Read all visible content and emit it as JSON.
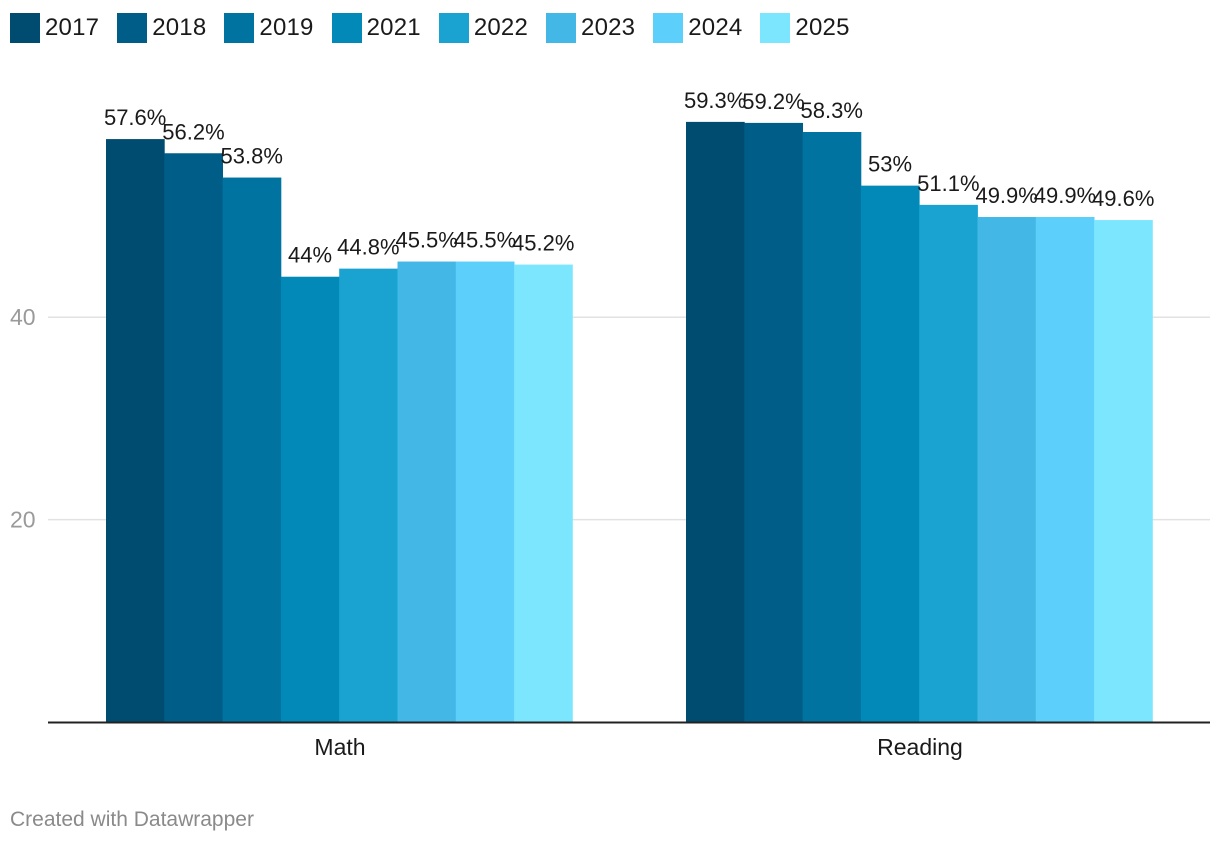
{
  "chart_data": {
    "type": "bar",
    "categories": [
      "Math",
      "Reading"
    ],
    "series": [
      {
        "name": "2017",
        "color": "#004c70",
        "values": [
          57.6,
          59.3
        ],
        "labels": [
          "57.6%",
          "59.3%"
        ]
      },
      {
        "name": "2018",
        "color": "#005d87",
        "values": [
          56.2,
          59.2
        ],
        "labels": [
          "56.2%",
          "59.2%"
        ]
      },
      {
        "name": "2019",
        "color": "#0073a0",
        "values": [
          53.8,
          58.3
        ],
        "labels": [
          "53.8%",
          "58.3%"
        ]
      },
      {
        "name": "2021",
        "color": "#0289b7",
        "values": [
          44.0,
          53.0
        ],
        "labels": [
          "44%",
          "53%"
        ]
      },
      {
        "name": "2022",
        "color": "#1aa3d1",
        "values": [
          44.8,
          51.1
        ],
        "labels": [
          "44.8%",
          "51.1%"
        ]
      },
      {
        "name": "2023",
        "color": "#43b8e6",
        "values": [
          45.5,
          49.9
        ],
        "labels": [
          "45.5%",
          "49.9%"
        ]
      },
      {
        "name": "2024",
        "color": "#5dcffb",
        "values": [
          45.5,
          49.9
        ],
        "labels": [
          "45.5%",
          "49.9%"
        ]
      },
      {
        "name": "2025",
        "color": "#7ce6ff",
        "values": [
          45.2,
          49.6
        ],
        "labels": [
          "45.2%",
          "49.6%"
        ]
      }
    ],
    "y_ticks": [
      20,
      40
    ],
    "y_tick_labels": [
      "20",
      "40"
    ],
    "ylim": [
      0,
      64
    ],
    "grid": true,
    "legend": "top-left",
    "title": "",
    "xlabel": "",
    "ylabel": ""
  },
  "footer": {
    "credit": "Created with Datawrapper"
  }
}
